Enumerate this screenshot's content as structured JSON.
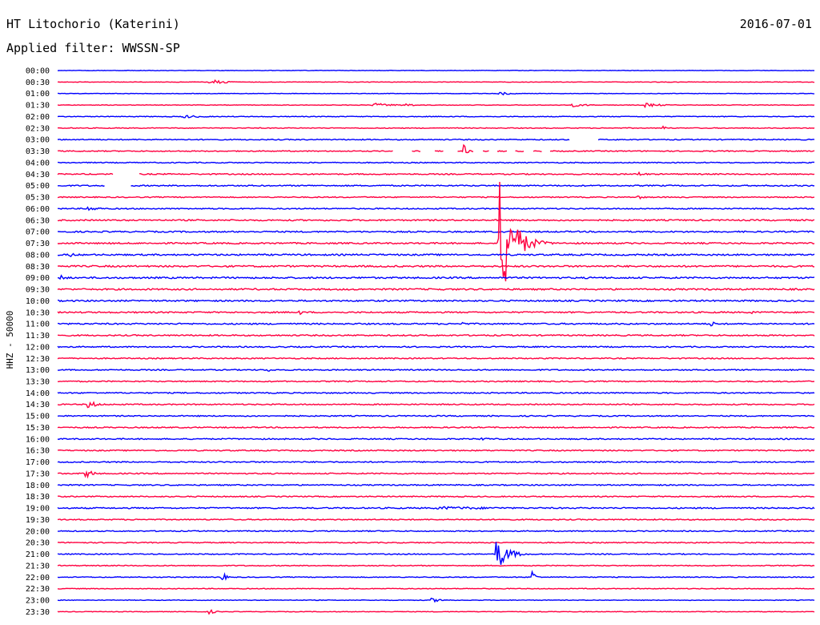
{
  "header": {
    "station": "HT Litochorio (Katerini)",
    "date": "2016-07-01",
    "filter_label": "Applied filter: WWSSN-SP"
  },
  "chart_data": {
    "type": "line",
    "title": "HT Litochorio (Katerini)",
    "ylabel": "HHZ - 50000",
    "x_unit": "minutes within each 30-minute row",
    "xlim": [
      0,
      30
    ],
    "row_labels": [
      "00:00",
      "00:30",
      "01:00",
      "01:30",
      "02:00",
      "02:30",
      "03:00",
      "03:30",
      "04:00",
      "04:30",
      "05:00",
      "05:30",
      "06:00",
      "06:30",
      "07:00",
      "07:30",
      "08:00",
      "08:30",
      "09:00",
      "09:30",
      "10:00",
      "10:30",
      "11:00",
      "11:30",
      "12:00",
      "12:30",
      "13:00",
      "13:30",
      "14:00",
      "14:30",
      "15:00",
      "15:30",
      "16:00",
      "16:30",
      "17:00",
      "17:30",
      "18:00",
      "18:30",
      "19:00",
      "19:30",
      "20:00",
      "20:30",
      "21:00",
      "21:30",
      "22:00",
      "22:30",
      "23:00",
      "23:30"
    ],
    "trace_colors": [
      "#0000ff",
      "#ff0040"
    ],
    "trace_color_rule": "alternating rows, starting with blue at 00:00",
    "noise_level": [
      0.3,
      0.3,
      0.3,
      0.35,
      0.45,
      0.5,
      0.6,
      0.6,
      0.6,
      0.7,
      0.75,
      0.65,
      0.7,
      0.85,
      0.85,
      0.9,
      0.95,
      1.0,
      1.0,
      0.95,
      0.9,
      0.85,
      0.85,
      0.8,
      0.75,
      0.7,
      0.7,
      0.7,
      0.7,
      0.7,
      0.7,
      0.7,
      0.75,
      0.7,
      0.7,
      0.7,
      0.7,
      0.65,
      0.8,
      0.65,
      0.65,
      0.6,
      0.6,
      0.55,
      0.5,
      0.45,
      0.4,
      0.35
    ],
    "events": [
      {
        "row": "00:30",
        "minute": 6.0,
        "amplitude": 6,
        "duration_min": 0.8
      },
      {
        "row": "01:00",
        "minute": 17.5,
        "amplitude": 2,
        "duration_min": 1.0
      },
      {
        "row": "01:30",
        "minute": 12.5,
        "amplitude": 2.5,
        "duration_min": 1.5
      },
      {
        "row": "01:30",
        "minute": 13.8,
        "amplitude": 3.5,
        "duration_min": 0.4
      },
      {
        "row": "01:30",
        "minute": 20.3,
        "amplitude": 2.5,
        "duration_min": 1.2
      },
      {
        "row": "01:30",
        "minute": 23.3,
        "amplitude": 2.5,
        "duration_min": 1.2
      },
      {
        "row": "02:00",
        "minute": 5.0,
        "amplitude": 2,
        "duration_min": 1.5
      },
      {
        "row": "02:30",
        "minute": 24.0,
        "amplitude": 2.5,
        "duration_min": 0.3
      },
      {
        "row": "03:30",
        "minute": 16.1,
        "amplitude": 8,
        "duration_min": 0.2
      },
      {
        "row": "04:30",
        "minute": 23.0,
        "amplitude": 3,
        "duration_min": 0.6
      },
      {
        "row": "05:30",
        "minute": 23.0,
        "amplitude": 2.5,
        "duration_min": 0.5
      },
      {
        "row": "06:00",
        "minute": 1.2,
        "amplitude": 3,
        "duration_min": 1.0
      },
      {
        "row": "07:30",
        "minute": 17.5,
        "amplitude": 80,
        "duration_min": 1.0
      },
      {
        "row": "08:00",
        "minute": 0.5,
        "amplitude": 3,
        "duration_min": 0.5
      },
      {
        "row": "09:00",
        "minute": 0.1,
        "amplitude": 4,
        "duration_min": 0.5
      },
      {
        "row": "09:30",
        "minute": 15.0,
        "amplitude": 3,
        "duration_min": 0.3
      },
      {
        "row": "10:30",
        "minute": 9.6,
        "amplitude": 3,
        "duration_min": 0.2
      },
      {
        "row": "10:30",
        "minute": 27.5,
        "amplitude": 3,
        "duration_min": 0.2
      },
      {
        "row": "11:00",
        "minute": 16.0,
        "amplitude": 3,
        "duration_min": 0.3
      },
      {
        "row": "11:00",
        "minute": 25.9,
        "amplitude": 3,
        "duration_min": 0.5
      },
      {
        "row": "13:00",
        "minute": 8.3,
        "amplitude": 2.5,
        "duration_min": 0.5
      },
      {
        "row": "14:30",
        "minute": 1.2,
        "amplitude": 5,
        "duration_min": 0.7
      },
      {
        "row": "16:00",
        "minute": 16.8,
        "amplitude": 2.5,
        "duration_min": 0.6
      },
      {
        "row": "17:30",
        "minute": 1.1,
        "amplitude": 6,
        "duration_min": 0.6
      },
      {
        "row": "19:00",
        "minute": 15.0,
        "amplitude": 2,
        "duration_min": 7.0
      },
      {
        "row": "21:00",
        "minute": 17.4,
        "amplitude": 20,
        "duration_min": 0.8
      },
      {
        "row": "22:00",
        "minute": 6.5,
        "amplitude": 10,
        "duration_min": 0.2
      },
      {
        "row": "22:00",
        "minute": 18.8,
        "amplitude": 10,
        "duration_min": 0.2
      },
      {
        "row": "23:00",
        "minute": 14.8,
        "amplitude": 2.5,
        "duration_min": 1.0
      },
      {
        "row": "23:30",
        "minute": 6.0,
        "amplitude": 3,
        "duration_min": 0.5
      }
    ],
    "gaps": [
      {
        "row": "03:00",
        "start_min": 20.3,
        "end_min": 21.4
      },
      {
        "row": "03:30",
        "start_min": 13.3,
        "end_min": 14.0
      },
      {
        "row": "03:30",
        "start_min": 14.4,
        "end_min": 14.9
      },
      {
        "row": "03:30",
        "start_min": 15.3,
        "end_min": 15.8
      },
      {
        "row": "03:30",
        "start_min": 16.5,
        "end_min": 16.8
      },
      {
        "row": "03:30",
        "start_min": 17.1,
        "end_min": 17.4
      },
      {
        "row": "03:30",
        "start_min": 17.8,
        "end_min": 18.1
      },
      {
        "row": "03:30",
        "start_min": 18.5,
        "end_min": 18.8
      },
      {
        "row": "03:30",
        "start_min": 19.2,
        "end_min": 19.5
      },
      {
        "row": "04:30",
        "start_min": 2.2,
        "end_min": 3.2
      },
      {
        "row": "05:00",
        "start_min": 1.9,
        "end_min": 2.9
      }
    ],
    "grid": false,
    "legend": "none"
  }
}
